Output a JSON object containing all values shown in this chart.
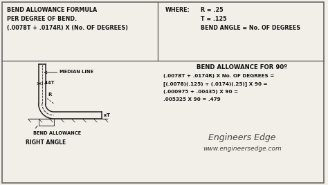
{
  "bg_color": "#f2efe9",
  "border_color": "#666666",
  "fig_w": 4.74,
  "fig_h": 2.68,
  "dpi": 100,
  "top_section": {
    "left_text_line1": "BEND ALLOWANCE FORMULA",
    "left_text_line2": "PER DEGREE OF BEND.",
    "left_text_line3": "(.0078T + .0174R) X (No. OF DEGREES)",
    "where_label": "WHERE:",
    "right_lines": [
      "R = .25",
      "T = .125",
      "BEND ANGLE = No. OF DEGREES"
    ]
  },
  "bottom_section": {
    "title": "BEND ALLOWANCE FOR 90º",
    "calc_lines": [
      "(.0078T + .0174R) X No. OF DEGREES =",
      "[(.0078)(.125) + (.0174)(.25)] X 90 =",
      "(.000975 + .00435) X 90 =",
      ".005325 X 90 = .479"
    ],
    "diagram_labels": {
      "median_line": "MEDIAN LINE",
      "offset": ".44T",
      "radius": "R",
      "thickness": "T",
      "bend_allowance": "BEND ALLOWANCE",
      "right_angle": "RIGHT ANGLE"
    },
    "brand_line1": "Engineers Edge",
    "brand_line2": "www.engineersedge.com"
  }
}
